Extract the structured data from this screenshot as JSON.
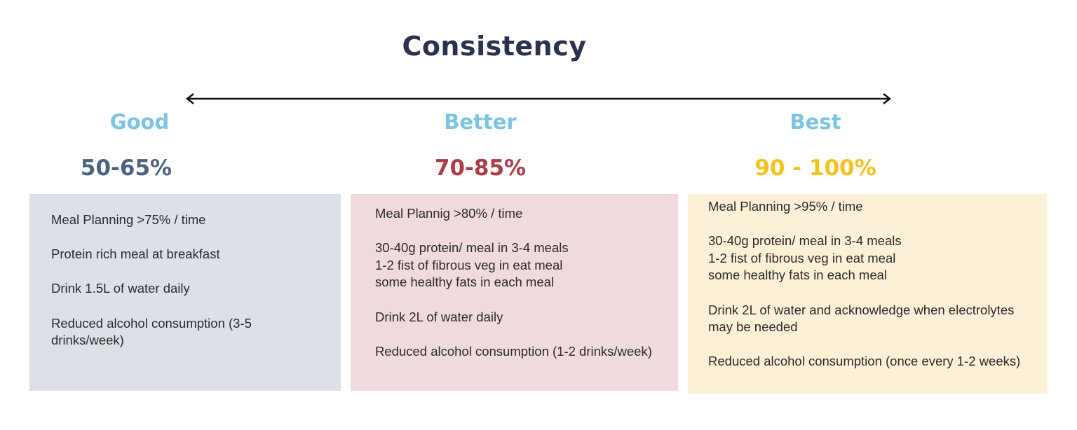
{
  "title": "Consistency",
  "arrow": {
    "color": "#111111",
    "direction": "bidirectional"
  },
  "columns": [
    {
      "tier": "Good",
      "range": "50-65%",
      "range_color": "#4e6380",
      "box_color": "#dde0e7",
      "lines": [
        "Meal Planning >75% / time",
        "",
        "Protein rich meal at breakfast",
        "",
        "Drink 1.5L of water daily",
        "",
        "Reduced alcohol consumption (3-5",
        "drinks/week)"
      ]
    },
    {
      "tier": "Better",
      "range": "70-85%",
      "range_color": "#b03a48",
      "box_color": "#f0dadd",
      "lines": [
        "Meal Plannig >80% / time",
        "",
        "30-40g protein/ meal in 3-4 meals",
        "1-2 fist of fibrous veg in eat meal",
        "some healthy fats in each meal",
        "",
        "Drink 2L of water daily",
        "",
        "Reduced alcohol consumption (1-2 drinks/week)"
      ]
    },
    {
      "tier": "Best",
      "range": "90 - 100%",
      "range_color": "#f5c21b",
      "box_color": "#fcf1d6",
      "lines": [
        "Meal Planning >95% / time",
        "",
        "30-40g protein/ meal in 3-4 meals",
        "1-2 fist of fibrous veg in eat meal",
        "some healthy fats in each meal",
        "",
        "Drink 2L of water and acknowledge when electrolytes",
        "may be needed",
        "",
        "Reduced alcohol consumption (once every 1-2 weeks)"
      ]
    }
  ],
  "tier_color": "#7cc4e4",
  "title_color": "#2d3150"
}
